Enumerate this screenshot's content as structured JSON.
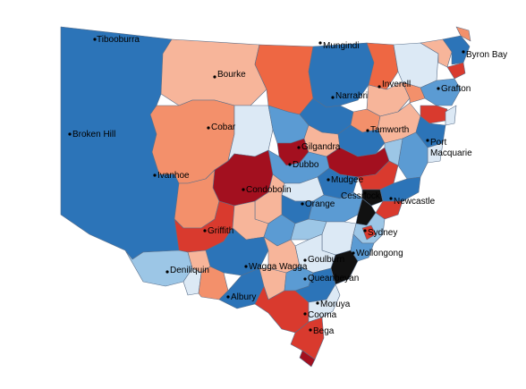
{
  "palette": {
    "dark_blue": "#2c74b8",
    "mid_blue": "#5b9bd3",
    "light_blue": "#9cc6e6",
    "pale_blue": "#dce9f5",
    "pale_red": "#f7b59a",
    "salmon": "#f3906b",
    "orange_red": "#ee6743",
    "red": "#d93a2e",
    "dark_red": "#a3101f",
    "black": "#111111",
    "border": "#5a6f8a"
  },
  "towns": [
    {
      "id": "tibooburra",
      "label": "Tibooburra"
    },
    {
      "id": "bourke",
      "label": "Bourke"
    },
    {
      "id": "mungindi",
      "label": "Mungindi"
    },
    {
      "id": "byron-bay",
      "label": "Byron Bay"
    },
    {
      "id": "inverell",
      "label": "Inverell"
    },
    {
      "id": "grafton",
      "label": "Grafton"
    },
    {
      "id": "narrabri",
      "label": "Narrabri"
    },
    {
      "id": "cobar",
      "label": "Cobar"
    },
    {
      "id": "broken-hill",
      "label": "Broken Hill"
    },
    {
      "id": "gilgandra",
      "label": "Gilgandra"
    },
    {
      "id": "tamworth",
      "label": "Tamworth"
    },
    {
      "id": "port-macquarie-1",
      "label": "Port"
    },
    {
      "id": "port-macquarie-2",
      "label": "Macquarie"
    },
    {
      "id": "dubbo",
      "label": "Dubbo"
    },
    {
      "id": "ivanhoe",
      "label": "Ivanhoe"
    },
    {
      "id": "mudgee",
      "label": "Mudgee"
    },
    {
      "id": "condobolin",
      "label": "Condobolin"
    },
    {
      "id": "cessnock",
      "label": "Cessnock"
    },
    {
      "id": "newcastle",
      "label": "Newcastle"
    },
    {
      "id": "orange",
      "label": "Orange"
    },
    {
      "id": "griffith",
      "label": "Griffith"
    },
    {
      "id": "sydney",
      "label": "Sydney"
    },
    {
      "id": "wollongong",
      "label": "Wollongong"
    },
    {
      "id": "goulburn",
      "label": "Goulburn"
    },
    {
      "id": "deniliquin",
      "label": "Deniliquin"
    },
    {
      "id": "wagga-wagga",
      "label": "Wagga Wagga"
    },
    {
      "id": "queanbeyan",
      "label": "Queanbeyan"
    },
    {
      "id": "albury",
      "label": "Albury"
    },
    {
      "id": "moruya",
      "label": "Moruya"
    },
    {
      "id": "cooma",
      "label": "Cooma"
    },
    {
      "id": "bega",
      "label": "Bega"
    }
  ]
}
